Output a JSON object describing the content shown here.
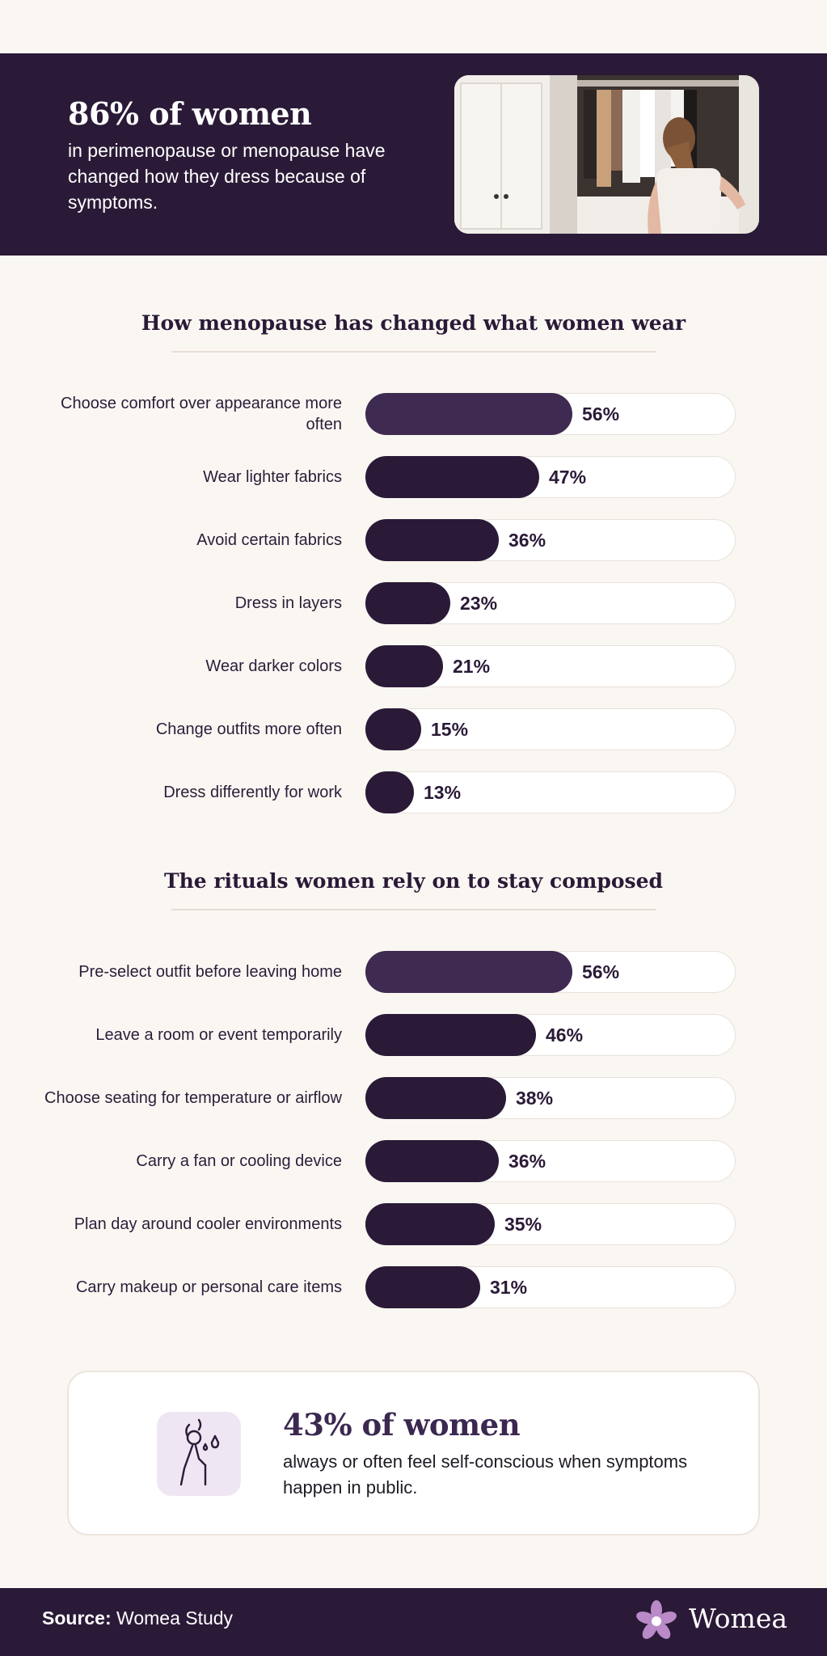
{
  "hero": {
    "title": "86% of women",
    "text": "in perimenopause or menopause have changed how they dress because of symptoms."
  },
  "chart_data": [
    {
      "type": "bar",
      "orientation": "horizontal",
      "title": "How menopause has changed what women wear",
      "categories": [
        "Choose comfort over appearance more often",
        "Wear lighter fabrics",
        "Avoid certain fabrics",
        "Dress in layers",
        "Wear darker colors",
        "Change outfits more often",
        "Dress differently for work"
      ],
      "values": [
        56,
        47,
        36,
        23,
        21,
        15,
        13
      ],
      "value_labels": [
        "56%",
        "47%",
        "36%",
        "23%",
        "21%",
        "15%",
        "13%"
      ],
      "xlim": [
        0,
        100
      ],
      "grid": false,
      "colors": {
        "highlight": "#3f2a52",
        "bar": "#2a1a37",
        "track": "#ffffff"
      }
    },
    {
      "type": "bar",
      "orientation": "horizontal",
      "title": "The rituals women rely on to stay composed",
      "categories": [
        "Pre-select outfit before leaving home",
        "Leave a room or event temporarily",
        "Choose seating for temperature or airflow",
        "Carry a fan or cooling device",
        "Plan day around cooler environments",
        "Carry makeup or personal care items"
      ],
      "values": [
        56,
        46,
        38,
        36,
        35,
        31
      ],
      "value_labels": [
        "56%",
        "46%",
        "38%",
        "36%",
        "35%",
        "31%"
      ],
      "xlim": [
        0,
        100
      ],
      "grid": false,
      "colors": {
        "highlight": "#3f2a52",
        "bar": "#2a1a37",
        "track": "#ffffff"
      }
    }
  ],
  "callout": {
    "icon": "hot-flash-person-icon",
    "title": "43% of women",
    "text": "always or often feel self-conscious when symptoms happen in public."
  },
  "footer": {
    "source_label": "Source:",
    "source_value": "Womea Study",
    "brand": "Womea",
    "brand_icon": "flower-logo-icon"
  },
  "colors": {
    "dark": "#2a1a37",
    "accent": "#3f2a52",
    "background": "#faf7f3",
    "icon_bg": "#efe6f3"
  }
}
